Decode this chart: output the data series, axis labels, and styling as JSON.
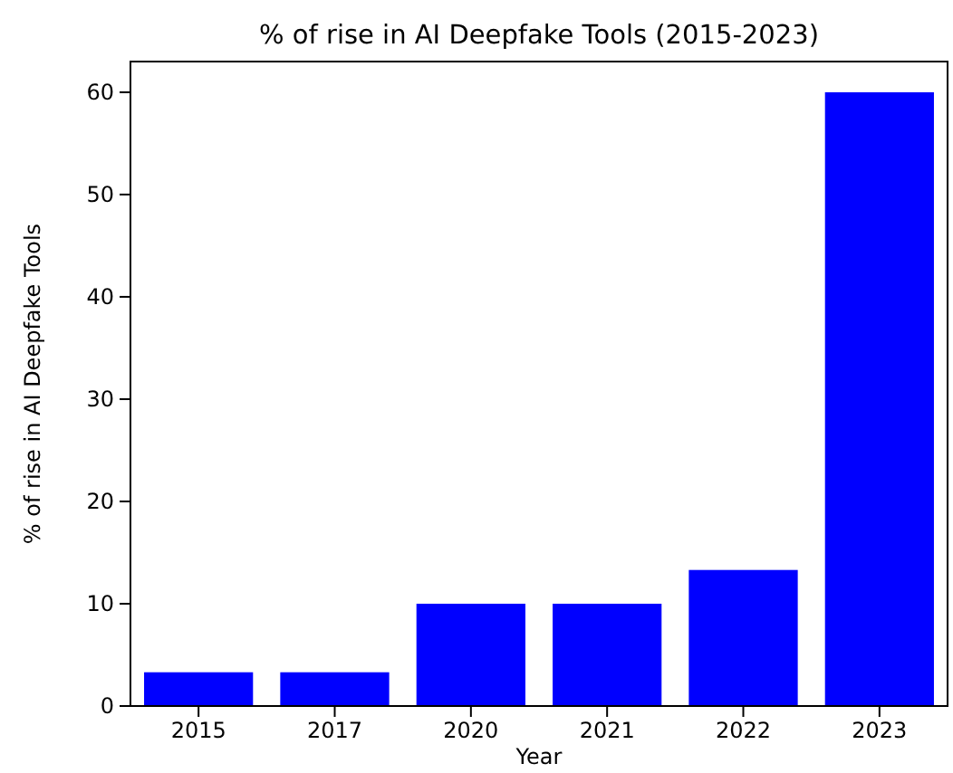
{
  "chart_data": {
    "type": "bar",
    "title": "% of rise in AI Deepfake Tools (2015-2023)",
    "xlabel": "Year",
    "ylabel": "% of rise in AI Deepfake Tools",
    "categories": [
      "2015",
      "2017",
      "2020",
      "2021",
      "2022",
      "2023"
    ],
    "values": [
      3.3,
      3.3,
      10,
      10,
      13.3,
      60
    ],
    "color": "#0000ff",
    "ylim": [
      0,
      63
    ],
    "yticks": [
      0,
      10,
      20,
      30,
      40,
      50,
      60
    ]
  }
}
